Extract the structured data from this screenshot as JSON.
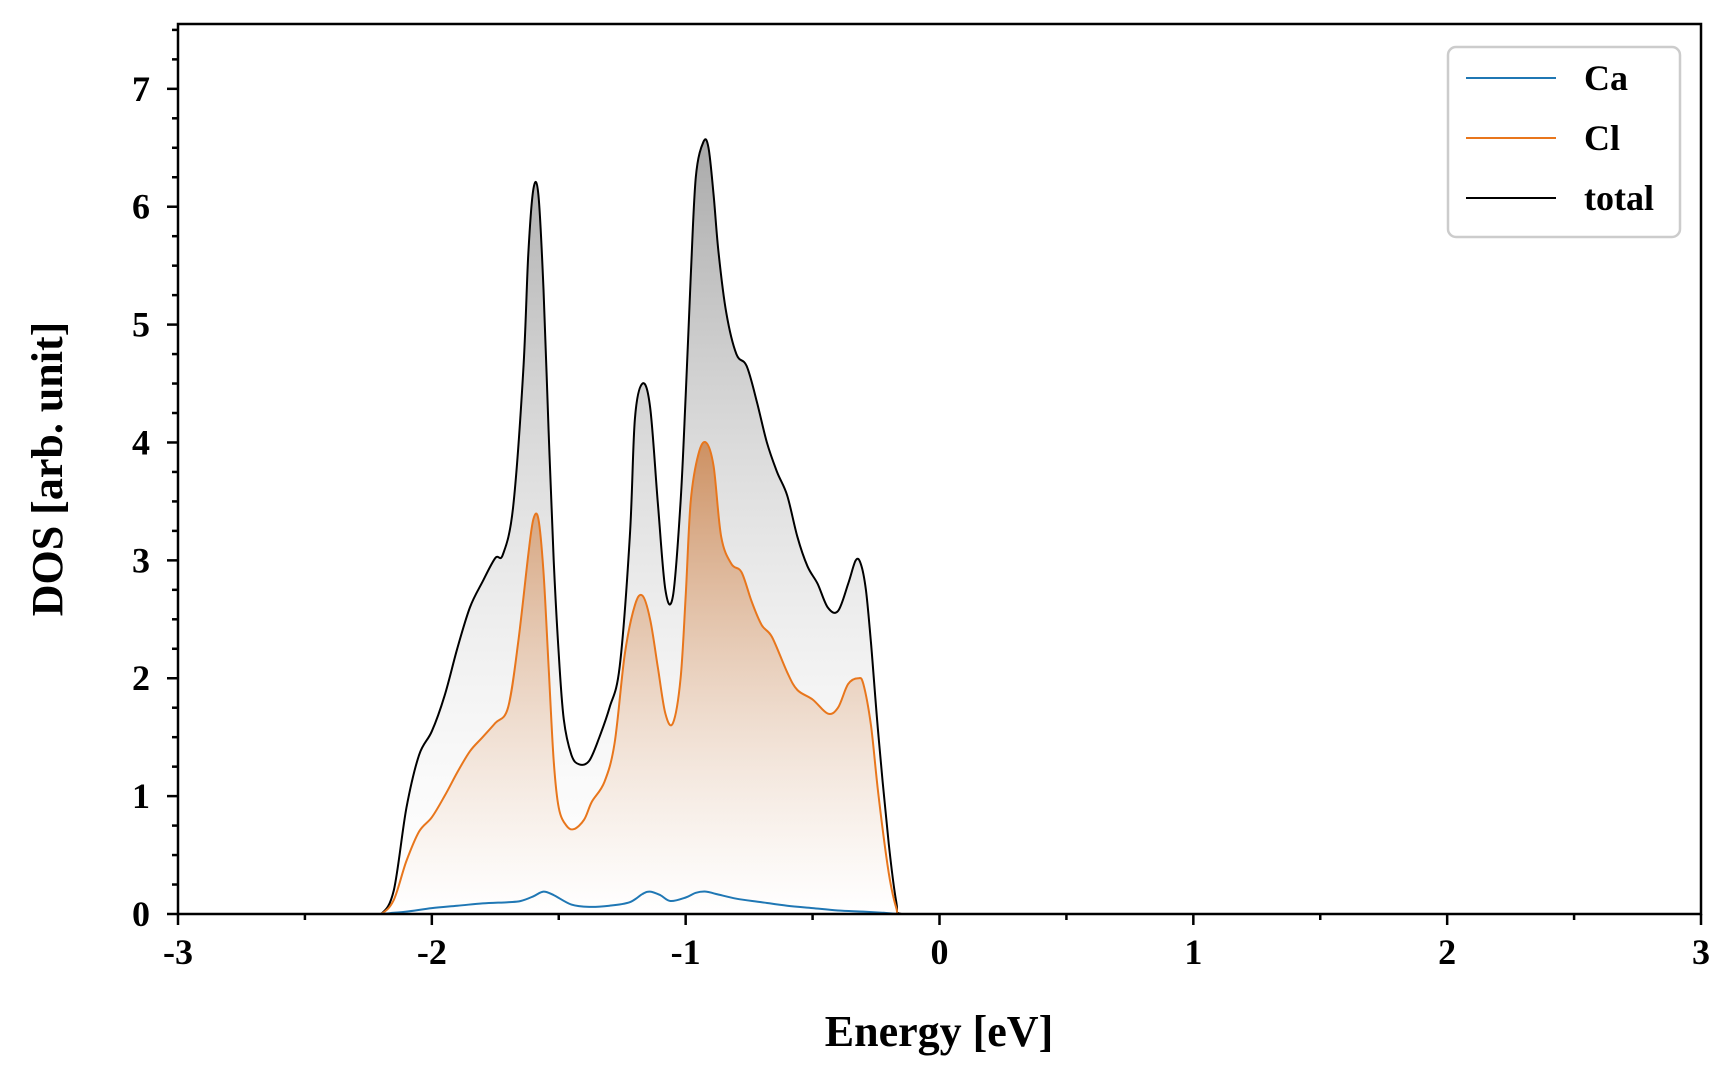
{
  "chart_data": {
    "type": "area",
    "title": "",
    "xlabel": "Energy [eV]",
    "ylabel": "DOS [arb. unit]",
    "xlim": [
      -3,
      3
    ],
    "ylim": [
      0,
      7.55
    ],
    "xticks": [
      -3,
      -2,
      -1,
      0,
      1,
      2,
      3
    ],
    "xtick_labels": [
      "-3",
      "-2",
      "-1",
      "0",
      "1",
      "2",
      "3"
    ],
    "yticks": [
      0,
      1,
      2,
      3,
      4,
      5,
      6,
      7
    ],
    "ytick_labels": [
      "0",
      "1",
      "2",
      "3",
      "4",
      "5",
      "6",
      "7"
    ],
    "minor_ticks": true,
    "grid": false,
    "legend": {
      "position": "top-right",
      "entries": [
        "Ca",
        "Cl",
        "total"
      ]
    },
    "colors": {
      "Ca": "#1f77b4",
      "Cl": "#e8761c",
      "total": "#000000"
    },
    "fill": {
      "Cl": "gradient-orange",
      "total": "gradient-gray"
    },
    "series": [
      {
        "name": "Ca",
        "x": [
          -2.25,
          -2.2,
          -2.15,
          -2.1,
          -2.0,
          -1.9,
          -1.8,
          -1.7,
          -1.65,
          -1.6,
          -1.56,
          -1.52,
          -1.45,
          -1.38,
          -1.3,
          -1.22,
          -1.17,
          -1.14,
          -1.1,
          -1.06,
          -1.0,
          -0.96,
          -0.92,
          -0.88,
          -0.8,
          -0.7,
          -0.6,
          -0.5,
          -0.4,
          -0.3,
          -0.22,
          -0.15,
          0.0,
          1.0,
          2.0,
          3.0
        ],
        "y": [
          0,
          0,
          0.01,
          0.02,
          0.05,
          0.07,
          0.09,
          0.1,
          0.11,
          0.15,
          0.19,
          0.16,
          0.08,
          0.06,
          0.07,
          0.1,
          0.17,
          0.19,
          0.16,
          0.11,
          0.14,
          0.18,
          0.19,
          0.17,
          0.13,
          0.1,
          0.07,
          0.05,
          0.03,
          0.02,
          0.01,
          0,
          0,
          0,
          0,
          0
        ]
      },
      {
        "name": "Cl",
        "x": [
          -2.25,
          -2.2,
          -2.15,
          -2.1,
          -2.05,
          -2.0,
          -1.95,
          -1.9,
          -1.85,
          -1.8,
          -1.75,
          -1.7,
          -1.66,
          -1.62,
          -1.6,
          -1.58,
          -1.56,
          -1.54,
          -1.52,
          -1.5,
          -1.47,
          -1.44,
          -1.4,
          -1.37,
          -1.32,
          -1.28,
          -1.24,
          -1.2,
          -1.17,
          -1.14,
          -1.11,
          -1.08,
          -1.05,
          -1.02,
          -1.0,
          -0.98,
          -0.95,
          -0.92,
          -0.89,
          -0.86,
          -0.82,
          -0.78,
          -0.74,
          -0.7,
          -0.66,
          -0.6,
          -0.56,
          -0.5,
          -0.44,
          -0.4,
          -0.36,
          -0.32,
          -0.3,
          -0.27,
          -0.24,
          -0.2,
          -0.17,
          -0.15,
          0.0,
          1.0,
          2.0,
          3.0
        ],
        "y": [
          0,
          0,
          0.12,
          0.45,
          0.7,
          0.82,
          1.0,
          1.2,
          1.38,
          1.5,
          1.62,
          1.75,
          2.3,
          3.05,
          3.35,
          3.35,
          2.9,
          2.1,
          1.3,
          0.9,
          0.75,
          0.72,
          0.8,
          0.95,
          1.12,
          1.45,
          2.2,
          2.62,
          2.7,
          2.5,
          2.1,
          1.7,
          1.62,
          2.0,
          2.7,
          3.5,
          3.9,
          4.0,
          3.8,
          3.2,
          2.97,
          2.9,
          2.65,
          2.45,
          2.35,
          2.05,
          1.9,
          1.82,
          1.7,
          1.75,
          1.95,
          2.0,
          1.95,
          1.6,
          1.0,
          0.35,
          0.05,
          0,
          0,
          0,
          0,
          0
        ]
      },
      {
        "name": "total",
        "x": [
          -2.25,
          -2.2,
          -2.15,
          -2.1,
          -2.05,
          -2.0,
          -1.95,
          -1.9,
          -1.85,
          -1.8,
          -1.75,
          -1.72,
          -1.68,
          -1.64,
          -1.62,
          -1.6,
          -1.58,
          -1.56,
          -1.54,
          -1.52,
          -1.5,
          -1.48,
          -1.45,
          -1.42,
          -1.38,
          -1.34,
          -1.3,
          -1.26,
          -1.22,
          -1.2,
          -1.17,
          -1.14,
          -1.11,
          -1.08,
          -1.05,
          -1.02,
          -1.0,
          -0.98,
          -0.96,
          -0.93,
          -0.91,
          -0.89,
          -0.87,
          -0.84,
          -0.8,
          -0.76,
          -0.72,
          -0.68,
          -0.64,
          -0.6,
          -0.56,
          -0.52,
          -0.48,
          -0.44,
          -0.4,
          -0.36,
          -0.33,
          -0.31,
          -0.29,
          -0.27,
          -0.24,
          -0.2,
          -0.17,
          -0.15,
          0.0,
          1.0,
          2.0,
          3.0
        ],
        "y": [
          0,
          0,
          0.2,
          0.9,
          1.35,
          1.55,
          1.85,
          2.25,
          2.6,
          2.82,
          3.02,
          3.05,
          3.45,
          4.6,
          5.6,
          6.15,
          6.1,
          5.3,
          4.1,
          3.0,
          2.2,
          1.65,
          1.35,
          1.27,
          1.3,
          1.5,
          1.75,
          2.1,
          3.2,
          4.2,
          4.5,
          4.3,
          3.5,
          2.75,
          2.7,
          3.5,
          4.4,
          5.4,
          6.25,
          6.55,
          6.5,
          6.1,
          5.6,
          5.1,
          4.75,
          4.65,
          4.35,
          4.0,
          3.75,
          3.55,
          3.2,
          2.95,
          2.8,
          2.6,
          2.57,
          2.8,
          3.0,
          2.97,
          2.75,
          2.3,
          1.5,
          0.6,
          0.1,
          0,
          0,
          0,
          0,
          0
        ]
      }
    ]
  }
}
